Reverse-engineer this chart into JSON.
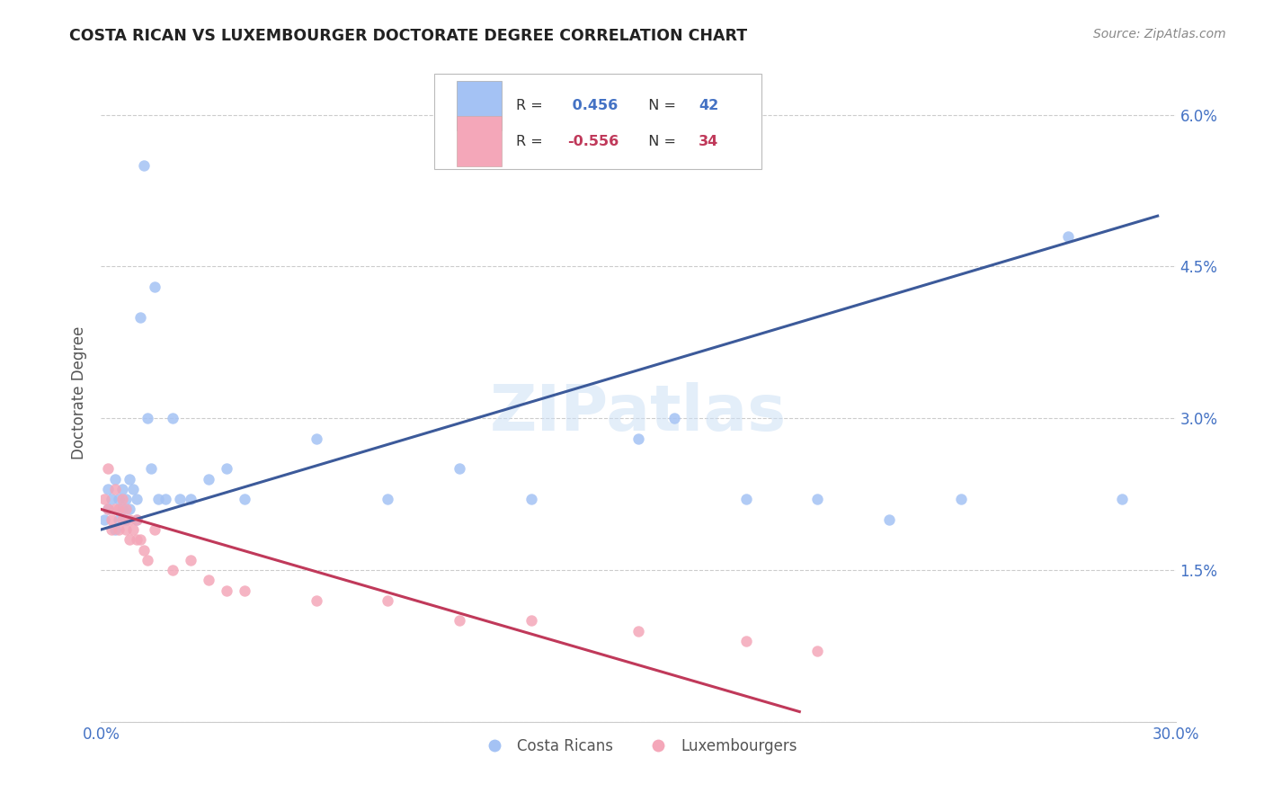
{
  "title": "COSTA RICAN VS LUXEMBOURGER DOCTORATE DEGREE CORRELATION CHART",
  "source": "Source: ZipAtlas.com",
  "ylabel": "Doctorate Degree",
  "x_min": 0.0,
  "x_max": 0.3,
  "y_min": 0.0,
  "y_max": 0.065,
  "legend_blue_R": "0.456",
  "legend_blue_N": "42",
  "legend_pink_R": "-0.556",
  "legend_pink_N": "34",
  "blue_color": "#a4c2f4",
  "pink_color": "#f4a7b9",
  "blue_line_color": "#3c5a9a",
  "pink_line_color": "#c0395a",
  "blue_scatter_x": [
    0.001,
    0.002,
    0.002,
    0.003,
    0.004,
    0.004,
    0.005,
    0.005,
    0.006,
    0.006,
    0.007,
    0.007,
    0.008,
    0.008,
    0.009,
    0.01,
    0.01,
    0.011,
    0.012,
    0.013,
    0.014,
    0.015,
    0.016,
    0.018,
    0.02,
    0.022,
    0.025,
    0.03,
    0.035,
    0.04,
    0.06,
    0.08,
    0.1,
    0.12,
    0.15,
    0.16,
    0.18,
    0.2,
    0.22,
    0.24,
    0.27,
    0.285
  ],
  "blue_scatter_y": [
    0.02,
    0.021,
    0.023,
    0.022,
    0.019,
    0.024,
    0.02,
    0.022,
    0.021,
    0.023,
    0.02,
    0.022,
    0.021,
    0.024,
    0.023,
    0.02,
    0.022,
    0.04,
    0.055,
    0.03,
    0.025,
    0.043,
    0.022,
    0.022,
    0.03,
    0.022,
    0.022,
    0.024,
    0.025,
    0.022,
    0.028,
    0.022,
    0.025,
    0.022,
    0.028,
    0.03,
    0.022,
    0.022,
    0.02,
    0.022,
    0.048,
    0.022
  ],
  "pink_scatter_x": [
    0.001,
    0.002,
    0.002,
    0.003,
    0.003,
    0.004,
    0.004,
    0.005,
    0.005,
    0.006,
    0.006,
    0.007,
    0.007,
    0.008,
    0.008,
    0.009,
    0.01,
    0.01,
    0.011,
    0.012,
    0.013,
    0.015,
    0.02,
    0.025,
    0.03,
    0.035,
    0.04,
    0.06,
    0.08,
    0.1,
    0.12,
    0.15,
    0.18,
    0.2
  ],
  "pink_scatter_y": [
    0.022,
    0.021,
    0.025,
    0.02,
    0.019,
    0.021,
    0.023,
    0.019,
    0.021,
    0.02,
    0.022,
    0.019,
    0.021,
    0.02,
    0.018,
    0.019,
    0.018,
    0.02,
    0.018,
    0.017,
    0.016,
    0.019,
    0.015,
    0.016,
    0.014,
    0.013,
    0.013,
    0.012,
    0.012,
    0.01,
    0.01,
    0.009,
    0.008,
    0.007
  ],
  "blue_line_x": [
    0.0,
    0.295
  ],
  "blue_line_y": [
    0.019,
    0.05
  ],
  "pink_line_x": [
    0.0,
    0.195
  ],
  "pink_line_y": [
    0.021,
    0.001
  ]
}
